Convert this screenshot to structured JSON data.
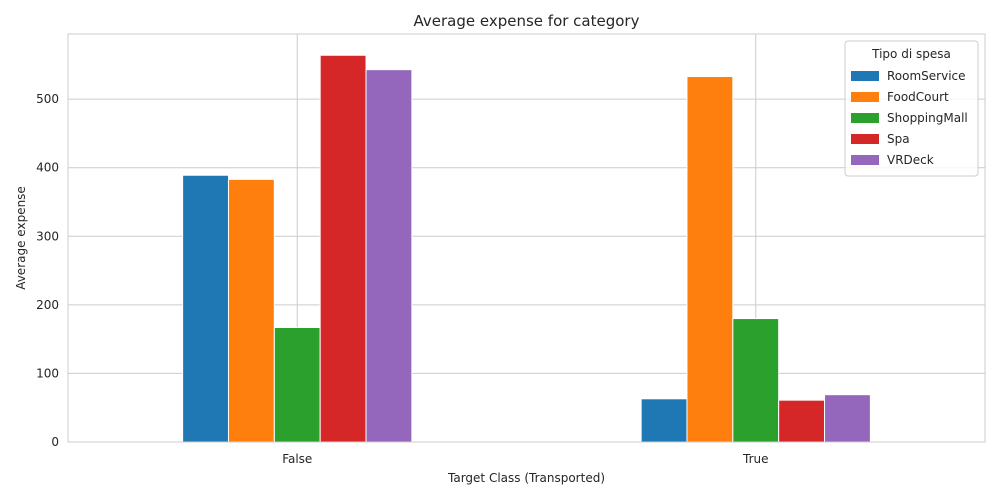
{
  "chart_data": {
    "type": "bar",
    "title": "Average expense for category",
    "xlabel": "Target Class (Transported)",
    "ylabel": "Average expense",
    "categories": [
      "False",
      "True"
    ],
    "ylim": [
      0,
      595
    ],
    "yticks": [
      0,
      100,
      200,
      300,
      400,
      500
    ],
    "grid": true,
    "legend": {
      "title": "Tipo di spesa",
      "placement": "top-right"
    },
    "series": [
      {
        "name": "RoomService",
        "color": "#1f77b4",
        "values": [
          389,
          63
        ]
      },
      {
        "name": "FoodCourt",
        "color": "#ff7f0e",
        "values": [
          383,
          533
        ]
      },
      {
        "name": "ShoppingMall",
        "color": "#2ca02c",
        "values": [
          167,
          180
        ]
      },
      {
        "name": "Spa",
        "color": "#d62728",
        "values": [
          564,
          61
        ]
      },
      {
        "name": "VRDeck",
        "color": "#9467bd",
        "values": [
          543,
          69
        ]
      }
    ]
  }
}
